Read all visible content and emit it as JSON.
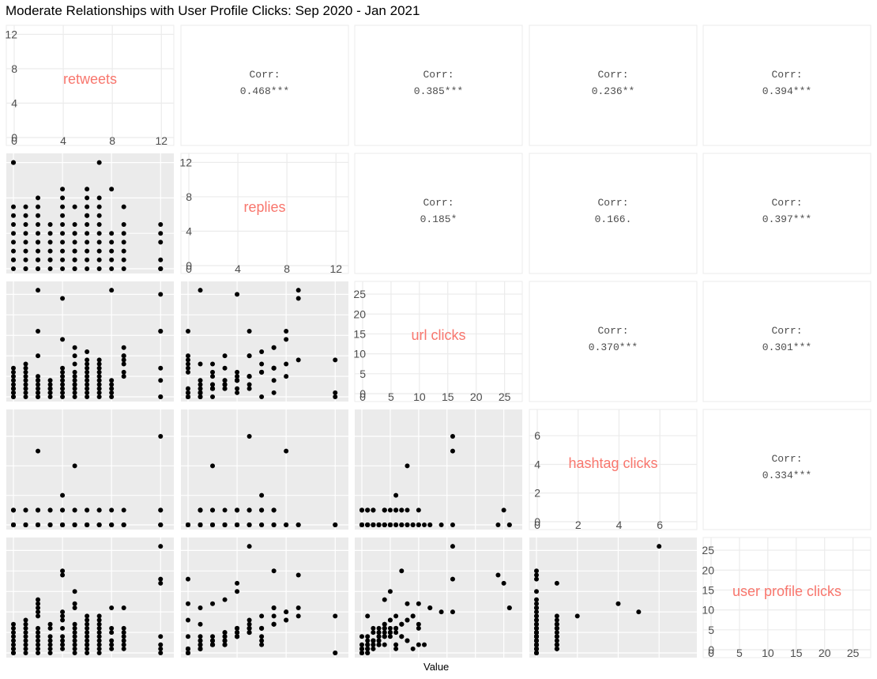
{
  "chart_data": {
    "type": "scatter",
    "title": "Moderate Relationships with User Profile Clicks: Sep 2020 - Jan 2021",
    "xlabel": "Value",
    "variables": [
      {
        "name": "retweets",
        "range": [
          0,
          12.5
        ],
        "ticks": [
          "0",
          "4",
          "8",
          "12"
        ],
        "tick_values": [
          0,
          4,
          8,
          12
        ]
      },
      {
        "name": "replies",
        "range": [
          0,
          12.5
        ],
        "ticks": [
          "0",
          "4",
          "8",
          "12"
        ],
        "tick_values": [
          0,
          4,
          8,
          12
        ]
      },
      {
        "name": "url clicks",
        "range": [
          0,
          27
        ],
        "ticks": [
          "0",
          "5",
          "10",
          "15",
          "20",
          "25"
        ],
        "tick_values": [
          0,
          5,
          10,
          15,
          20,
          25
        ]
      },
      {
        "name": "hashtag clicks",
        "range": [
          0,
          7.5
        ],
        "ticks": [
          "0",
          "2",
          "4",
          "6"
        ],
        "tick_values": [
          0,
          2,
          4,
          6
        ]
      },
      {
        "name": "user profile clicks",
        "range": [
          0,
          27
        ],
        "ticks": [
          "0",
          "5",
          "10",
          "15",
          "20",
          "25"
        ],
        "tick_values": [
          0,
          5,
          10,
          15,
          20,
          25
        ]
      }
    ],
    "correlations": [
      {
        "row": 0,
        "col": 1,
        "label": "Corr:",
        "value": "0.468***"
      },
      {
        "row": 0,
        "col": 2,
        "label": "Corr:",
        "value": "0.385***"
      },
      {
        "row": 0,
        "col": 3,
        "label": "Corr:",
        "value": "0.236**"
      },
      {
        "row": 0,
        "col": 4,
        "label": "Corr:",
        "value": "0.394***"
      },
      {
        "row": 1,
        "col": 2,
        "label": "Corr:",
        "value": "0.185*"
      },
      {
        "row": 1,
        "col": 3,
        "label": "Corr:",
        "value": "0.166."
      },
      {
        "row": 1,
        "col": 4,
        "label": "Corr:",
        "value": "0.397***"
      },
      {
        "row": 2,
        "col": 3,
        "label": "Corr:",
        "value": "0.370***"
      },
      {
        "row": 2,
        "col": 4,
        "label": "Corr:",
        "value": "0.301***"
      },
      {
        "row": 3,
        "col": 4,
        "label": "Corr:",
        "value": "0.334***"
      }
    ],
    "observations": [
      [
        0,
        0,
        0,
        0,
        0
      ],
      [
        0,
        1,
        1,
        0,
        1
      ],
      [
        0,
        2,
        2,
        0,
        2
      ],
      [
        0,
        3,
        3,
        0,
        3
      ],
      [
        0,
        4,
        4,
        0,
        4
      ],
      [
        0,
        5,
        5,
        0,
        5
      ],
      [
        0,
        6,
        6,
        1,
        6
      ],
      [
        0,
        7,
        7,
        1,
        7
      ],
      [
        0,
        12,
        0,
        0,
        0
      ],
      [
        0,
        12,
        1,
        0,
        0
      ],
      [
        0,
        1,
        2,
        1,
        1
      ],
      [
        1,
        0,
        0,
        0,
        0
      ],
      [
        1,
        1,
        1,
        0,
        1
      ],
      [
        1,
        2,
        2,
        1,
        2
      ],
      [
        1,
        3,
        3,
        0,
        3
      ],
      [
        1,
        4,
        4,
        0,
        4
      ],
      [
        1,
        5,
        5,
        0,
        5
      ],
      [
        1,
        6,
        6,
        1,
        6
      ],
      [
        1,
        7,
        7,
        0,
        7
      ],
      [
        1,
        0,
        8,
        0,
        8
      ],
      [
        2,
        0,
        0,
        0,
        0
      ],
      [
        2,
        1,
        1,
        1,
        1
      ],
      [
        2,
        2,
        3,
        0,
        2
      ],
      [
        2,
        3,
        2,
        0,
        3
      ],
      [
        2,
        4,
        4,
        1,
        5
      ],
      [
        2,
        5,
        5,
        0,
        6
      ],
      [
        2,
        6,
        0,
        0,
        4
      ],
      [
        2,
        7,
        1,
        1,
        9
      ],
      [
        2,
        8,
        16,
        5,
        10
      ],
      [
        2,
        1,
        26,
        0,
        11
      ],
      [
        2,
        0,
        10,
        0,
        12
      ],
      [
        2,
        3,
        4,
        0,
        13
      ],
      [
        3,
        0,
        1,
        0,
        0
      ],
      [
        3,
        1,
        0,
        1,
        1
      ],
      [
        3,
        2,
        2,
        0,
        3
      ],
      [
        3,
        3,
        3,
        0,
        2
      ],
      [
        3,
        4,
        1,
        0,
        4
      ],
      [
        3,
        5,
        2,
        1,
        6
      ],
      [
        3,
        1,
        4,
        0,
        7
      ],
      [
        4,
        0,
        0,
        0,
        1
      ],
      [
        4,
        1,
        1,
        1,
        2
      ],
      [
        4,
        2,
        2,
        0,
        3
      ],
      [
        4,
        3,
        3,
        0,
        4
      ],
      [
        4,
        4,
        4,
        0,
        6
      ],
      [
        4,
        5,
        5,
        1,
        8
      ],
      [
        4,
        6,
        6,
        2,
        9
      ],
      [
        4,
        7,
        7,
        0,
        20
      ],
      [
        4,
        9,
        24,
        0,
        19
      ],
      [
        4,
        8,
        14,
        0,
        10
      ],
      [
        5,
        0,
        0,
        0,
        0
      ],
      [
        5,
        1,
        1,
        0,
        2
      ],
      [
        5,
        2,
        2,
        0,
        3
      ],
      [
        5,
        3,
        3,
        0,
        5
      ],
      [
        5,
        4,
        5,
        0,
        15
      ],
      [
        5,
        4,
        4,
        1,
        6
      ],
      [
        5,
        2,
        8,
        4,
        12
      ],
      [
        5,
        7,
        12,
        0,
        11
      ],
      [
        5,
        5,
        10,
        1,
        7
      ],
      [
        5,
        1,
        3,
        0,
        4
      ],
      [
        5,
        0,
        6,
        0,
        1
      ],
      [
        6,
        0,
        1,
        0,
        0
      ],
      [
        6,
        1,
        0,
        0,
        1
      ],
      [
        6,
        2,
        6,
        0,
        2
      ],
      [
        6,
        3,
        7,
        1,
        4
      ],
      [
        6,
        4,
        2,
        0,
        5
      ],
      [
        6,
        5,
        3,
        0,
        6
      ],
      [
        6,
        6,
        8,
        0,
        3
      ],
      [
        6,
        7,
        4,
        1,
        7
      ],
      [
        6,
        8,
        5,
        0,
        8
      ],
      [
        6,
        9,
        9,
        0,
        9
      ],
      [
        6,
        6,
        11,
        0,
        2
      ],
      [
        7,
        0,
        0,
        0,
        0
      ],
      [
        7,
        1,
        1,
        0,
        1
      ],
      [
        7,
        2,
        3,
        0,
        2
      ],
      [
        7,
        3,
        2,
        0,
        3
      ],
      [
        7,
        4,
        4,
        1,
        4
      ],
      [
        7,
        5,
        5,
        0,
        5
      ],
      [
        7,
        6,
        6,
        1,
        6
      ],
      [
        7,
        7,
        7,
        0,
        7
      ],
      [
        7,
        8,
        8,
        0,
        8
      ],
      [
        7,
        12,
        9,
        0,
        9
      ],
      [
        8,
        0,
        2,
        0,
        1
      ],
      [
        8,
        1,
        1,
        0,
        3
      ],
      [
        8,
        2,
        0,
        1,
        2
      ],
      [
        8,
        9,
        26,
        0,
        11
      ],
      [
        8,
        3,
        3,
        0,
        5
      ],
      [
        8,
        4,
        4,
        0,
        6
      ],
      [
        9,
        0,
        9,
        0,
        1
      ],
      [
        9,
        1,
        8,
        1,
        3
      ],
      [
        9,
        2,
        5,
        0,
        4
      ],
      [
        9,
        3,
        10,
        0,
        2
      ],
      [
        9,
        7,
        12,
        0,
        11
      ],
      [
        9,
        4,
        6,
        0,
        5
      ],
      [
        9,
        5,
        10,
        0,
        6
      ],
      [
        12,
        0,
        0,
        0,
        0
      ],
      [
        12,
        0,
        16,
        0,
        18
      ],
      [
        12,
        4,
        25,
        1,
        17
      ],
      [
        12,
        5,
        16,
        6,
        26
      ],
      [
        12,
        0,
        7,
        0,
        4
      ],
      [
        12,
        1,
        0,
        1,
        1
      ],
      [
        12,
        3,
        4,
        0,
        2
      ]
    ]
  }
}
